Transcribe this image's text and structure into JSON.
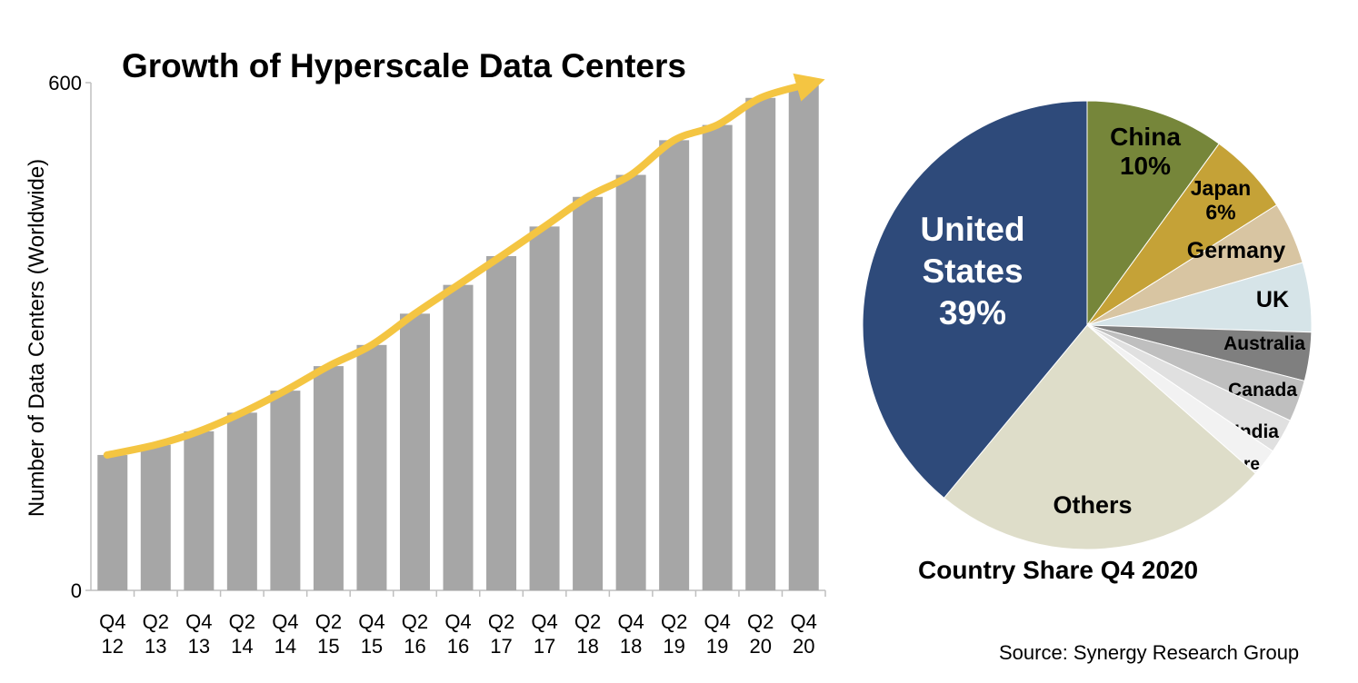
{
  "title": "Growth of Hyperscale Data Centers",
  "source": "Source: Synergy Research Group",
  "chart_data": [
    {
      "type": "bar",
      "title": "Growth of Hyperscale Data Centers",
      "ylabel": "Number of Data Centers (Worldwide)",
      "ylim": [
        0,
        600
      ],
      "yticks": [
        0,
        600
      ],
      "grid": false,
      "bar_color": "#a6a6a6",
      "trend_color": "#f4c542",
      "categories": [
        [
          "Q4",
          "12"
        ],
        [
          "Q2",
          "13"
        ],
        [
          "Q4",
          "13"
        ],
        [
          "Q2",
          "14"
        ],
        [
          "Q4",
          "14"
        ],
        [
          "Q2",
          "15"
        ],
        [
          "Q4",
          "15"
        ],
        [
          "Q2",
          "16"
        ],
        [
          "Q4",
          "16"
        ],
        [
          "Q2",
          "17"
        ],
        [
          "Q4",
          "17"
        ],
        [
          "Q2",
          "18"
        ],
        [
          "Q4",
          "18"
        ],
        [
          "Q2",
          "19"
        ],
        [
          "Q4",
          "19"
        ],
        [
          "Q2",
          "20"
        ],
        [
          "Q4",
          "20"
        ]
      ],
      "values": [
        160,
        172,
        188,
        210,
        236,
        265,
        290,
        327,
        361,
        395,
        430,
        465,
        491,
        532,
        550,
        582,
        597
      ]
    },
    {
      "type": "pie",
      "title": "Country Share Q4 2020",
      "slices": [
        {
          "label": "China",
          "pct": "10%",
          "value": 10,
          "color": "#76863a"
        },
        {
          "label": "Japan",
          "pct": "6%",
          "value": 6,
          "color": "#c5a237"
        },
        {
          "label": "Germany",
          "pct": "",
          "value": 4.5,
          "color": "#d8c5a2"
        },
        {
          "label": "UK",
          "pct": "",
          "value": 5,
          "color": "#d6e4e8"
        },
        {
          "label": "Australia",
          "pct": "",
          "value": 3.5,
          "color": "#7f7f7f"
        },
        {
          "label": "Canada",
          "pct": "",
          "value": 3,
          "color": "#bfbfbf"
        },
        {
          "label": "India",
          "pct": "",
          "value": 2.5,
          "color": "#e0e0e0"
        },
        {
          "label": "Singapore",
          "pct": "",
          "value": 2,
          "color": "#f2f2f2"
        },
        {
          "label": "Others",
          "pct": "",
          "value": 24.5,
          "color": "#deddc9"
        },
        {
          "label": "United States",
          "pct": "39%",
          "value": 39,
          "color": "#2e4a7a"
        }
      ]
    }
  ]
}
